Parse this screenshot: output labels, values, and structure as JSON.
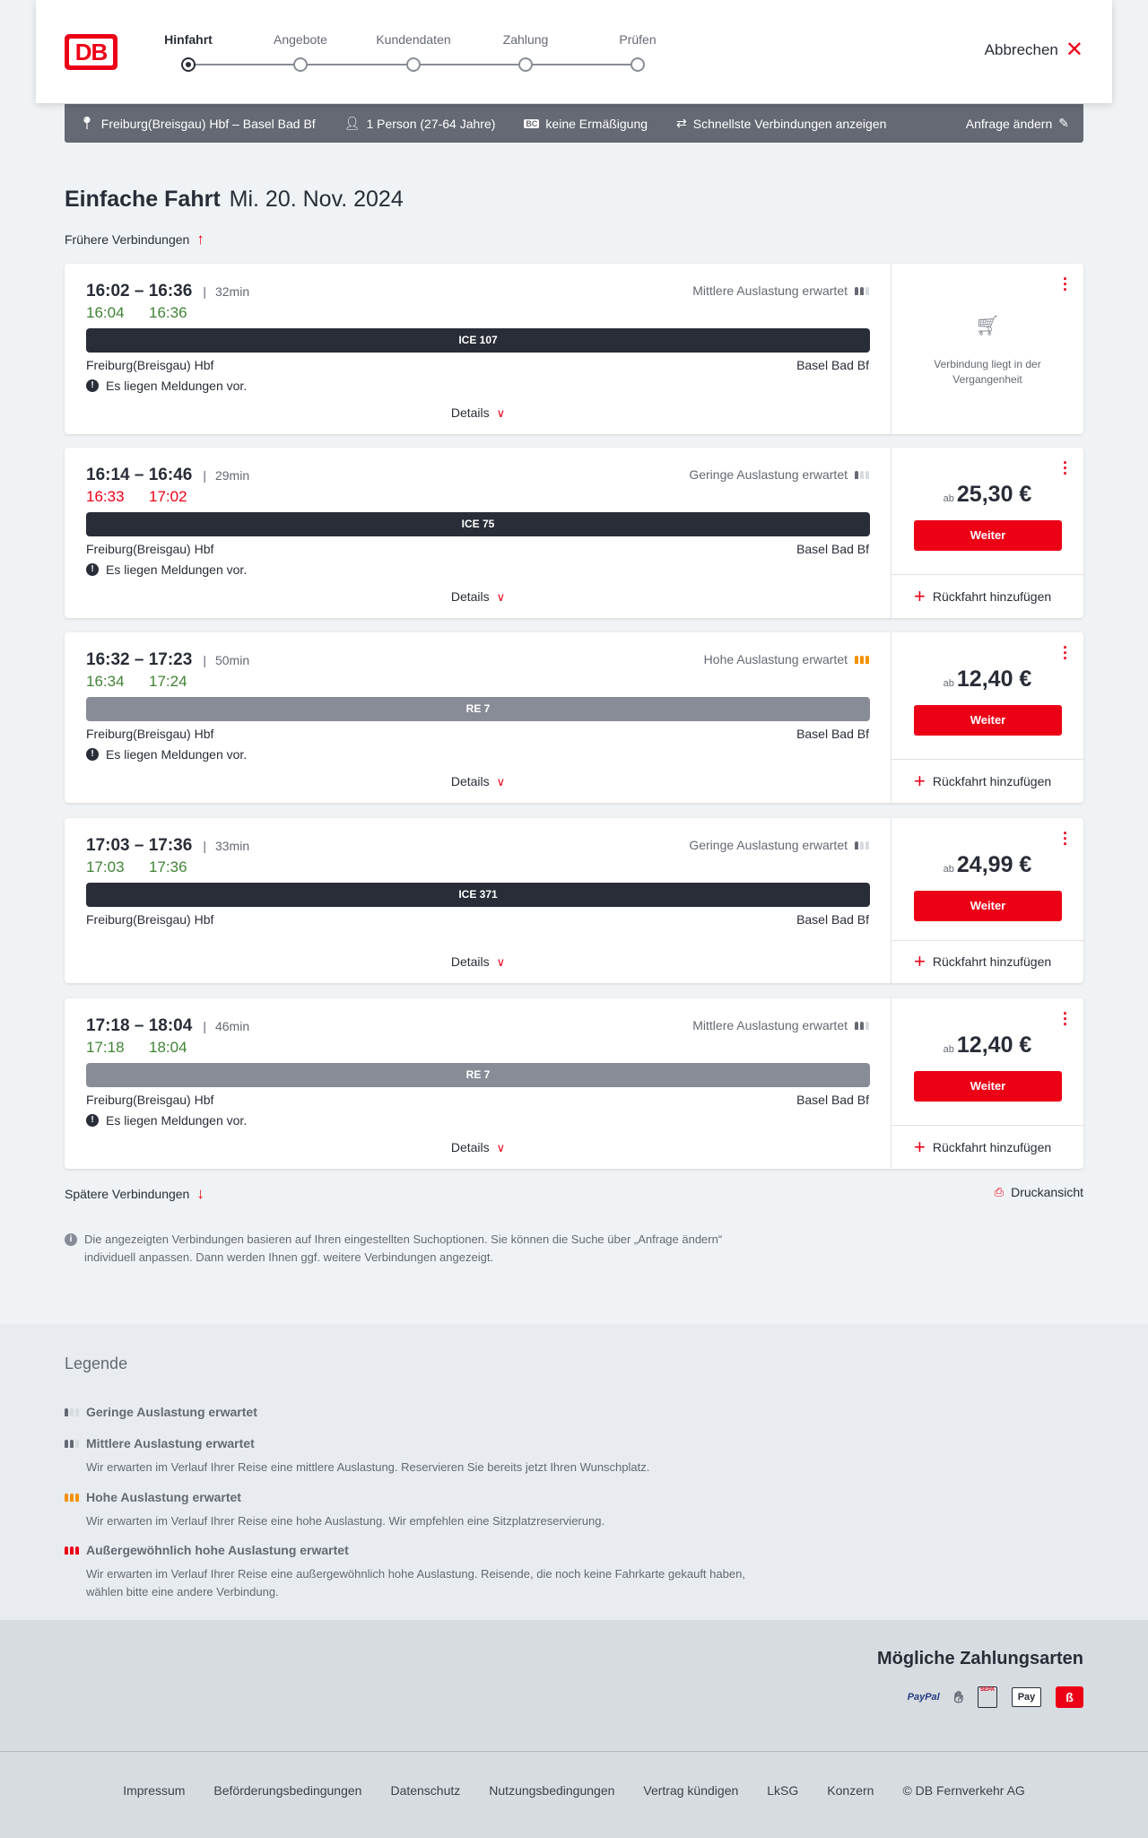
{
  "header": {
    "logo": "DB",
    "steps": [
      {
        "label": "Hinfahrt",
        "active": true
      },
      {
        "label": "Angebote",
        "active": false
      },
      {
        "label": "Kundendaten",
        "active": false
      },
      {
        "label": "Zahlung",
        "active": false
      },
      {
        "label": "Prüfen",
        "active": false
      }
    ],
    "cancel_label": "Abbrechen"
  },
  "search": {
    "route": "Freiburg(Breisgau) Hbf – Basel Bad Bf",
    "passengers": "1 Person (27-64 Jahre)",
    "discount_badge": "BC",
    "discount": "keine Ermäßigung",
    "fastest": "Schnellste Verbindungen anzeigen",
    "edit_label": "Anfrage ändern"
  },
  "page": {
    "title": "Einfache Fahrt",
    "date": "Mi. 20. Nov. 2024",
    "earlier": "Frühere Verbindungen",
    "later": "Spätere Verbindungen",
    "print": "Druckansicht",
    "info": "Die angezeigten Verbindungen basieren auf Ihren eingestellten Suchoptionen. Sie können die Suche über „Anfrage ändern“ individuell anpassen. Dann werden Ihnen ggf. weitere Verbindungen angezeigt."
  },
  "colors": {
    "on_time": "#408335",
    "delayed": "#ec0016",
    "ice": "#282d37",
    "regional": "#878c96",
    "accent": "#ec0016",
    "occupancy_high": "#f39200"
  },
  "labels": {
    "details": "Details",
    "weiter": "Weiter",
    "return": "Rückfahrt hinzufügen",
    "from_price": "ab",
    "messages": "Es liegen Meldungen vor.",
    "past": "Verbindung liegt in der Vergangenheit"
  },
  "connections": [
    {
      "time": "16:02 – 16:36",
      "duration": "32min",
      "rt_dep": "16:04",
      "rt_arr": "16:36",
      "delayed": false,
      "occupancy": "Mittlere Auslastung erwartet",
      "occ_level": 2,
      "train": "ICE 107",
      "type": "ice",
      "from": "Freiburg(Breisgau) Hbf",
      "to": "Basel Bad Bf",
      "messages": true,
      "past": true,
      "price": null
    },
    {
      "time": "16:14 – 16:46",
      "duration": "29min",
      "rt_dep": "16:33",
      "rt_arr": "17:02",
      "delayed": true,
      "occupancy": "Geringe Auslastung erwartet",
      "occ_level": 1,
      "train": "ICE 75",
      "type": "ice",
      "from": "Freiburg(Breisgau) Hbf",
      "to": "Basel Bad Bf",
      "messages": true,
      "past": false,
      "price": "25,30 €"
    },
    {
      "time": "16:32 – 17:23",
      "duration": "50min",
      "rt_dep": "16:34",
      "rt_arr": "17:24",
      "delayed": false,
      "occupancy": "Hohe Auslastung erwartet",
      "occ_level": 3,
      "train": "RE 7",
      "type": "regional",
      "from": "Freiburg(Breisgau) Hbf",
      "to": "Basel Bad Bf",
      "messages": true,
      "past": false,
      "price": "12,40 €"
    },
    {
      "time": "17:03 – 17:36",
      "duration": "33min",
      "rt_dep": "17:03",
      "rt_arr": "17:36",
      "delayed": false,
      "occupancy": "Geringe Auslastung erwartet",
      "occ_level": 1,
      "train": "ICE 371",
      "type": "ice",
      "from": "Freiburg(Breisgau) Hbf",
      "to": "Basel Bad Bf",
      "messages": false,
      "past": false,
      "price": "24,99 €"
    },
    {
      "time": "17:18 – 18:04",
      "duration": "46min",
      "rt_dep": "17:18",
      "rt_arr": "18:04",
      "delayed": false,
      "occupancy": "Mittlere Auslastung erwartet",
      "occ_level": 2,
      "train": "RE 7",
      "type": "regional",
      "from": "Freiburg(Breisgau) Hbf",
      "to": "Basel Bad Bf",
      "messages": true,
      "past": false,
      "price": "12,40 €"
    }
  ],
  "legend": {
    "title": "Legende",
    "items": [
      {
        "title": "Geringe Auslastung erwartet",
        "text": "",
        "level": 1
      },
      {
        "title": "Mittlere Auslastung erwartet",
        "text": "Wir erwarten im Verlauf Ihrer Reise eine mittlere Auslastung. Reservieren Sie bereits jetzt Ihren Wunschplatz.",
        "level": 2
      },
      {
        "title": "Hohe Auslastung erwartet",
        "text": "Wir erwarten im Verlauf Ihrer Reise eine hohe Auslastung. Wir empfehlen eine Sitzplatzreservierung.",
        "level": 3
      },
      {
        "title": "Außergewöhnlich hohe Auslastung erwartet",
        "text": "Wir erwarten im Verlauf Ihrer Reise eine außergewöhnlich hohe Auslastung. Reisende, die noch keine Fahrkarte gekauft haben, wählen bitte eine andere Verbindung.",
        "level": 4
      }
    ]
  },
  "payment": {
    "title": "Mögliche Zahlungsarten",
    "methods": [
      {
        "icon": "paypal-icon",
        "label": "PayPal"
      },
      {
        "icon": "credit-card-hand-icon",
        "label": ""
      },
      {
        "icon": "sepa-icon",
        "label": "SEPA"
      },
      {
        "icon": "apple-pay-icon",
        "label": "Pay"
      },
      {
        "icon": "db-bonus-icon",
        "label": ""
      }
    ]
  },
  "footer": {
    "links": [
      "Impressum",
      "Beförderungsbedingungen",
      "Datenschutz",
      "Nutzungsbedingungen",
      "Vertrag kündigen",
      "LkSG",
      "Konzern",
      "© DB Fernverkehr AG"
    ]
  }
}
